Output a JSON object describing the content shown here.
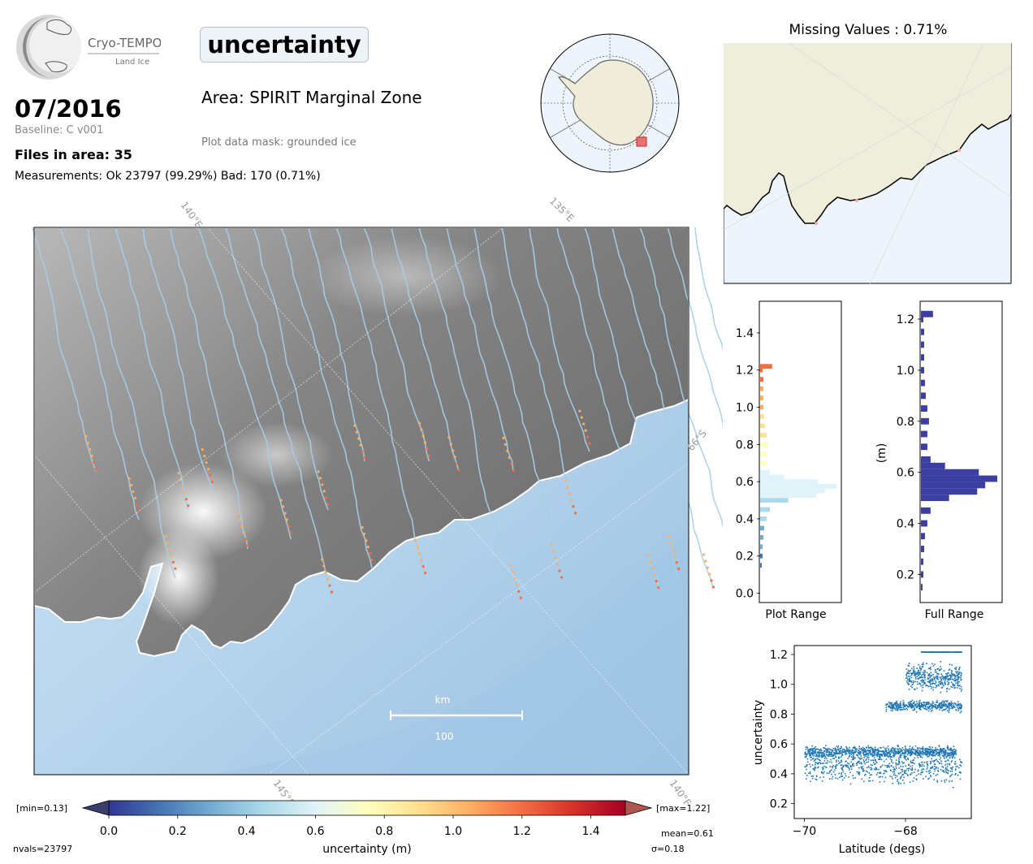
{
  "header": {
    "logo_name": "Cryo-TEMPO",
    "logo_sub": "Land Ice",
    "parameter": "uncertainty",
    "date": "07/2016",
    "baseline": "Baseline: C v001",
    "files": "Files in area: 35",
    "measurements": "Measurements: Ok 23797 (99.29%) Bad: 170 (0.71%)",
    "area": "Area: SPIRIT Marginal Zone",
    "mask": "Plot data mask: grounded ice",
    "missing": "Missing Values : 0.71%"
  },
  "map": {
    "grid_labels": [
      "140°E",
      "135°E",
      "66°S",
      "145°E",
      "140°E"
    ],
    "scale_label": "km",
    "scale_value": "100"
  },
  "colorbar": {
    "min_label": "[min=0.13]",
    "max_label": "[max=1.22]",
    "ticks": [
      "0.0",
      "0.2",
      "0.4",
      "0.6",
      "0.8",
      "1.0",
      "1.2",
      "1.4"
    ],
    "label": "uncertainty (m)",
    "nvals": "nvals=23797",
    "mean": "mean=0.61",
    "sigma": "σ=0.18",
    "colors": [
      "#313695",
      "#4575b4",
      "#74add1",
      "#abd9e9",
      "#e0f3f8",
      "#ffffbf",
      "#fee090",
      "#fdae61",
      "#f46d43",
      "#d73027",
      "#a50026"
    ]
  },
  "chart_data": [
    {
      "type": "bar",
      "orientation": "horizontal",
      "xlabel": "Plot Range",
      "ylabel": "",
      "ylim": [
        -0.05,
        1.57
      ],
      "ticks": [
        "0.0",
        "0.2",
        "0.4",
        "0.6",
        "0.8",
        "1.0",
        "1.2",
        "1.4"
      ],
      "bins": [
        0.15,
        0.2,
        0.25,
        0.3,
        0.35,
        0.4,
        0.45,
        0.5,
        0.525,
        0.55,
        0.575,
        0.6,
        0.625,
        0.65,
        0.7,
        0.75,
        0.8,
        0.85,
        0.9,
        0.95,
        1.0,
        1.05,
        1.1,
        1.15,
        1.2,
        1.22
      ],
      "values": [
        2,
        3,
        3,
        4,
        5,
        8,
        12,
        35,
        70,
        80,
        95,
        72,
        30,
        12,
        8,
        8,
        10,
        8,
        6,
        5,
        4,
        4,
        4,
        4,
        3,
        15
      ]
    },
    {
      "type": "bar",
      "orientation": "horizontal",
      "xlabel": "Full Range",
      "ylabel": "(m)",
      "ylim": [
        0.09,
        1.27
      ],
      "ticks": [
        "0.2",
        "0.4",
        "0.6",
        "0.8",
        "1.0",
        "1.2"
      ],
      "bins": [
        0.15,
        0.2,
        0.25,
        0.3,
        0.35,
        0.4,
        0.45,
        0.5,
        0.525,
        0.55,
        0.575,
        0.6,
        0.625,
        0.65,
        0.7,
        0.75,
        0.8,
        0.85,
        0.9,
        0.95,
        1.0,
        1.05,
        1.1,
        1.15,
        1.2,
        1.22
      ],
      "values": [
        2,
        3,
        3,
        4,
        5,
        8,
        12,
        35,
        70,
        80,
        95,
        72,
        30,
        12,
        8,
        8,
        10,
        8,
        6,
        5,
        4,
        4,
        4,
        4,
        3,
        15
      ]
    },
    {
      "type": "scatter",
      "xlabel": "Latitude (degs)",
      "ylabel": "uncertainty",
      "xlim": [
        -70.2,
        -66.7
      ],
      "ylim": [
        0.1,
        1.26
      ],
      "xticks": [
        "−70",
        "−68"
      ],
      "yticks": [
        "0.2",
        "0.4",
        "0.6",
        "0.8",
        "1.0",
        "1.2"
      ],
      "clusters": [
        {
          "x_range": [
            -70.0,
            -67.0
          ],
          "y_center": 0.55,
          "y_spread": 0.05,
          "count": 900
        },
        {
          "x_range": [
            -70.0,
            -66.9
          ],
          "y_center": 0.45,
          "y_spread": 0.15,
          "count": 600
        },
        {
          "x_range": [
            -68.4,
            -66.9
          ],
          "y_center": 0.86,
          "y_spread": 0.05,
          "count": 400
        },
        {
          "x_range": [
            -68.0,
            -66.9
          ],
          "y_center": 1.05,
          "y_spread": 0.12,
          "count": 400
        },
        {
          "x_range": [
            -67.7,
            -66.9
          ],
          "y_center": 1.22,
          "y_spread": 0.0,
          "count": 200
        }
      ]
    }
  ]
}
